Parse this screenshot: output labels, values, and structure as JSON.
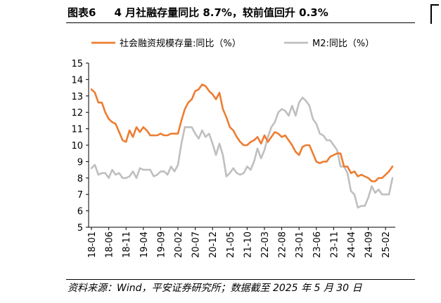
{
  "header": {
    "figure_no": "图表6",
    "title": "4 月社融存量同比 8.7%，较前值回升 0.3%"
  },
  "source_note": "资料来源：Wind，平安证券研究所；数据截至 2025 年 5 月 30 日",
  "colors": {
    "series1": "#ED7D31",
    "series2": "#BFBFBF",
    "axis": "#000000"
  },
  "chart_data": {
    "type": "line",
    "ylim": [
      5,
      15
    ],
    "yticks": [
      5,
      6,
      7,
      8,
      9,
      10,
      11,
      12,
      13,
      14,
      15
    ],
    "x_tick_labels": [
      "18-01",
      "18-06",
      "18-11",
      "19-04",
      "19-09",
      "20-02",
      "20-07",
      "20-12",
      "21-05",
      "21-10",
      "22-03",
      "22-08",
      "23-01",
      "23-06",
      "23-11",
      "24-04",
      "24-09",
      "25-02"
    ],
    "x": [
      "18-01",
      "18-02",
      "18-03",
      "18-04",
      "18-05",
      "18-06",
      "18-07",
      "18-08",
      "18-09",
      "18-10",
      "18-11",
      "18-12",
      "19-01",
      "19-02",
      "19-03",
      "19-04",
      "19-05",
      "19-06",
      "19-07",
      "19-08",
      "19-09",
      "19-10",
      "19-11",
      "19-12",
      "20-01",
      "20-02",
      "20-03",
      "20-04",
      "20-05",
      "20-06",
      "20-07",
      "20-08",
      "20-09",
      "20-10",
      "20-11",
      "20-12",
      "21-01",
      "21-02",
      "21-03",
      "21-04",
      "21-05",
      "21-06",
      "21-07",
      "21-08",
      "21-09",
      "21-10",
      "21-11",
      "21-12",
      "22-01",
      "22-02",
      "22-03",
      "22-04",
      "22-05",
      "22-06",
      "22-07",
      "22-08",
      "22-09",
      "22-10",
      "22-11",
      "22-12",
      "23-01",
      "23-02",
      "23-03",
      "23-04",
      "23-05",
      "23-06",
      "23-07",
      "23-08",
      "23-09",
      "23-10",
      "23-11",
      "23-12",
      "24-01",
      "24-02",
      "24-03",
      "24-04",
      "24-05",
      "24-06",
      "24-07",
      "24-08",
      "24-09",
      "24-10",
      "24-11",
      "24-12",
      "25-01",
      "25-02",
      "25-03",
      "25-04"
    ],
    "series": [
      {
        "name": "社会融资规模存量:同比（%）",
        "values": [
          13.4,
          13.2,
          12.6,
          12.6,
          12.0,
          11.6,
          11.4,
          11.3,
          10.8,
          10.3,
          10.2,
          10.9,
          10.5,
          11.1,
          10.8,
          11.1,
          10.9,
          10.6,
          10.6,
          10.6,
          10.7,
          10.6,
          10.6,
          10.7,
          10.7,
          10.7,
          11.5,
          12.2,
          12.6,
          12.8,
          13.3,
          13.4,
          13.7,
          13.6,
          13.3,
          13.1,
          12.8,
          13.2,
          12.2,
          11.7,
          11.1,
          10.9,
          10.5,
          10.2,
          10.0,
          10.0,
          10.2,
          10.3,
          10.5,
          10.1,
          10.6,
          10.2,
          10.5,
          10.8,
          10.7,
          10.5,
          10.6,
          10.3,
          10.0,
          9.6,
          9.4,
          9.9,
          10.0,
          10.0,
          9.5,
          9.0,
          8.9,
          9.0,
          9.0,
          9.3,
          9.4,
          9.5,
          9.5,
          8.7,
          8.7,
          8.3,
          8.4,
          8.1,
          8.2,
          8.1,
          8.0,
          7.8,
          7.8,
          8.0,
          8.0,
          8.2,
          8.4,
          8.7
        ]
      },
      {
        "name": "M2:同比（%）",
        "values": [
          8.6,
          8.8,
          8.2,
          8.3,
          8.3,
          8.0,
          8.5,
          8.2,
          8.3,
          8.0,
          8.0,
          8.1,
          8.4,
          8.0,
          8.6,
          8.5,
          8.5,
          8.5,
          8.1,
          8.2,
          8.4,
          8.4,
          8.2,
          8.7,
          8.4,
          8.8,
          10.1,
          11.1,
          11.1,
          11.1,
          10.7,
          10.4,
          10.9,
          10.5,
          10.7,
          10.1,
          9.4,
          10.1,
          9.4,
          8.1,
          8.3,
          8.6,
          8.3,
          8.2,
          8.3,
          8.7,
          8.5,
          9.0,
          9.8,
          9.2,
          9.7,
          10.5,
          11.1,
          11.4,
          12.0,
          12.2,
          12.1,
          11.8,
          12.4,
          11.8,
          12.6,
          12.9,
          12.7,
          12.4,
          11.6,
          11.3,
          10.7,
          10.6,
          10.3,
          10.3,
          10.0,
          9.7,
          8.7,
          8.7,
          8.3,
          7.2,
          7.0,
          6.2,
          6.3,
          6.3,
          6.8,
          7.5,
          7.1,
          7.3,
          7.0,
          7.0,
          7.0,
          8.0
        ]
      }
    ]
  }
}
